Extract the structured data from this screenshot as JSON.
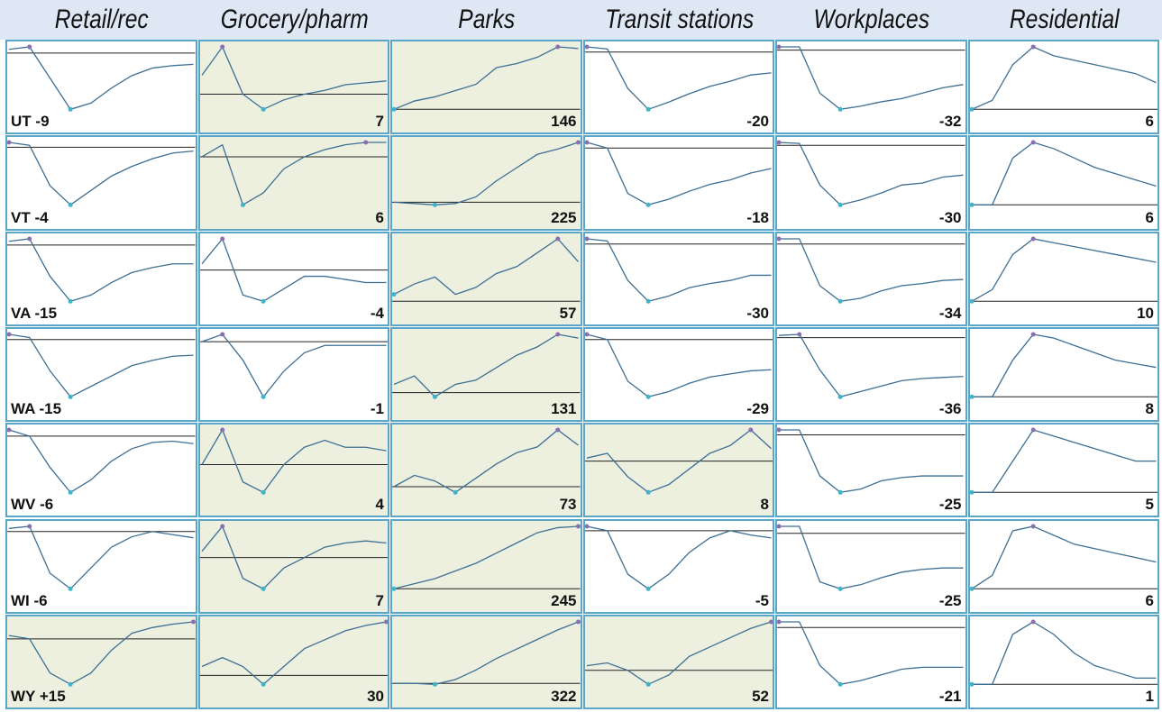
{
  "columns": [
    "Retail/rec",
    "Grocery/pharm",
    "Parks",
    "Transit stations",
    "Workplaces",
    "Residential"
  ],
  "baseline": 0,
  "rows": [
    {
      "state": "UT",
      "cells": [
        {
          "value": -9,
          "shaded": false,
          "line": [
            3,
            5,
            -20,
            -45,
            -40,
            -28,
            -18,
            -12,
            -10,
            -9
          ]
        },
        {
          "value": 7,
          "shaded": true,
          "line": [
            10,
            25,
            0,
            -8,
            -3,
            0,
            2,
            5,
            6,
            7
          ]
        },
        {
          "value": 146,
          "shaded": true,
          "line": [
            0,
            20,
            30,
            45,
            60,
            100,
            110,
            125,
            150,
            146
          ]
        },
        {
          "value": -20,
          "shaded": false,
          "line": [
            5,
            3,
            -35,
            -55,
            -48,
            -40,
            -33,
            -28,
            -22,
            -20
          ]
        },
        {
          "value": -32,
          "shaded": false,
          "line": [
            3,
            3,
            -40,
            -55,
            -52,
            -48,
            -45,
            -40,
            -35,
            -32
          ]
        },
        {
          "value": 6,
          "shaded": false,
          "line": [
            0,
            2,
            10,
            14,
            12,
            11,
            10,
            9,
            8,
            6
          ]
        }
      ]
    },
    {
      "state": "VT",
      "cells": [
        {
          "value": -4,
          "shaded": false,
          "line": [
            5,
            2,
            -40,
            -60,
            -45,
            -30,
            -20,
            -12,
            -6,
            -4
          ]
        },
        {
          "value": 6,
          "shaded": true,
          "line": [
            0,
            5,
            -20,
            -15,
            -5,
            0,
            3,
            5,
            6,
            6
          ]
        },
        {
          "value": 225,
          "shaded": true,
          "line": [
            0,
            -5,
            -10,
            -5,
            20,
            80,
            130,
            180,
            200,
            225
          ]
        },
        {
          "value": -18,
          "shaded": false,
          "line": [
            5,
            0,
            -40,
            -50,
            -45,
            -38,
            -32,
            -28,
            -22,
            -18
          ]
        },
        {
          "value": -30,
          "shaded": false,
          "line": [
            3,
            2,
            -40,
            -60,
            -55,
            -48,
            -40,
            -38,
            -32,
            -30
          ]
        },
        {
          "value": 6,
          "shaded": false,
          "line": [
            0,
            0,
            15,
            20,
            18,
            15,
            12,
            10,
            8,
            6
          ]
        }
      ]
    },
    {
      "state": "VA",
      "cells": [
        {
          "value": -15,
          "shaded": false,
          "line": [
            3,
            5,
            -25,
            -45,
            -40,
            -30,
            -22,
            -18,
            -15,
            -15
          ]
        },
        {
          "value": -4,
          "shaded": false,
          "line": [
            2,
            10,
            -8,
            -10,
            -6,
            -2,
            -2,
            -3,
            -4,
            -4
          ]
        },
        {
          "value": 57,
          "shaded": true,
          "line": [
            10,
            25,
            35,
            10,
            20,
            40,
            50,
            70,
            90,
            57
          ]
        },
        {
          "value": -30,
          "shaded": false,
          "line": [
            5,
            3,
            -35,
            -55,
            -50,
            -42,
            -38,
            -35,
            -30,
            -30
          ]
        },
        {
          "value": -34,
          "shaded": false,
          "line": [
            5,
            5,
            -40,
            -55,
            -52,
            -45,
            -40,
            -38,
            -35,
            -34
          ]
        },
        {
          "value": 10,
          "shaded": false,
          "line": [
            0,
            3,
            12,
            16,
            15,
            14,
            13,
            12,
            11,
            10
          ]
        }
      ]
    },
    {
      "state": "WA",
      "cells": [
        {
          "value": -15,
          "shaded": false,
          "line": [
            5,
            2,
            -30,
            -55,
            -45,
            -35,
            -25,
            -20,
            -16,
            -15
          ]
        },
        {
          "value": -1,
          "shaded": false,
          "line": [
            0,
            2,
            -5,
            -15,
            -8,
            -3,
            -1,
            -1,
            -1,
            -1
          ]
        },
        {
          "value": 131,
          "shaded": true,
          "line": [
            20,
            40,
            -10,
            20,
            30,
            60,
            90,
            110,
            140,
            131
          ]
        },
        {
          "value": -29,
          "shaded": false,
          "line": [
            5,
            0,
            -40,
            -55,
            -50,
            -42,
            -36,
            -33,
            -30,
            -29
          ]
        },
        {
          "value": -36,
          "shaded": false,
          "line": [
            2,
            3,
            -30,
            -55,
            -50,
            -45,
            -40,
            -38,
            -37,
            -36
          ]
        },
        {
          "value": 8,
          "shaded": false,
          "line": [
            0,
            0,
            10,
            17,
            16,
            14,
            12,
            10,
            9,
            8
          ]
        }
      ]
    },
    {
      "state": "WV",
      "cells": [
        {
          "value": -6,
          "shaded": false,
          "line": [
            5,
            0,
            -25,
            -45,
            -35,
            -20,
            -10,
            -5,
            -4,
            -6
          ]
        },
        {
          "value": 4,
          "shaded": true,
          "line": [
            0,
            10,
            -5,
            -8,
            0,
            5,
            7,
            5,
            5,
            4
          ]
        },
        {
          "value": 73,
          "shaded": true,
          "line": [
            0,
            20,
            10,
            -10,
            15,
            40,
            60,
            70,
            100,
            73
          ]
        },
        {
          "value": 8,
          "shaded": true,
          "line": [
            2,
            5,
            -10,
            -20,
            -15,
            -5,
            5,
            10,
            20,
            8
          ]
        },
        {
          "value": -25,
          "shaded": false,
          "line": [
            3,
            3,
            -25,
            -35,
            -33,
            -28,
            -26,
            -25,
            -25,
            -25
          ]
        },
        {
          "value": 5,
          "shaded": false,
          "line": [
            0,
            0,
            5,
            10,
            9,
            8,
            7,
            6,
            5,
            5
          ]
        }
      ]
    },
    {
      "state": "WI",
      "cells": [
        {
          "value": -6,
          "shaded": false,
          "line": [
            3,
            5,
            -40,
            -55,
            -35,
            -15,
            -5,
            0,
            -3,
            -6
          ]
        },
        {
          "value": 7,
          "shaded": true,
          "line": [
            3,
            15,
            -10,
            -15,
            -5,
            0,
            5,
            7,
            8,
            7
          ]
        },
        {
          "value": 245,
          "shaded": true,
          "line": [
            0,
            20,
            40,
            70,
            100,
            140,
            180,
            220,
            240,
            245
          ]
        },
        {
          "value": -5,
          "shaded": false,
          "line": [
            3,
            0,
            -30,
            -40,
            -30,
            -15,
            -5,
            0,
            -3,
            -5
          ]
        },
        {
          "value": -25,
          "shaded": false,
          "line": [
            5,
            5,
            -35,
            -40,
            -37,
            -32,
            -28,
            -26,
            -25,
            -25
          ]
        },
        {
          "value": 6,
          "shaded": false,
          "line": [
            0,
            3,
            13,
            14,
            12,
            10,
            9,
            8,
            7,
            6
          ]
        }
      ]
    },
    {
      "state": "WY",
      "cells": [
        {
          "value": 15,
          "value_label": "+15",
          "shaded": true,
          "line": [
            3,
            0,
            -30,
            -40,
            -30,
            -10,
            5,
            10,
            13,
            15
          ]
        },
        {
          "value": 30,
          "shaded": true,
          "line": [
            5,
            10,
            5,
            -5,
            5,
            15,
            20,
            25,
            28,
            30
          ]
        },
        {
          "value": 322,
          "shaded": true,
          "line": [
            0,
            0,
            -5,
            20,
            70,
            130,
            180,
            230,
            280,
            322
          ]
        },
        {
          "value": 52,
          "shaded": true,
          "line": [
            5,
            8,
            0,
            -15,
            -5,
            15,
            25,
            35,
            45,
            52
          ]
        },
        {
          "value": -21,
          "shaded": false,
          "line": [
            3,
            3,
            -20,
            -30,
            -28,
            -25,
            -22,
            -21,
            -21,
            -21
          ]
        },
        {
          "value": 1,
          "shaded": false,
          "line": [
            0,
            0,
            8,
            10,
            8,
            5,
            3,
            2,
            1,
            1
          ]
        }
      ]
    }
  ]
}
